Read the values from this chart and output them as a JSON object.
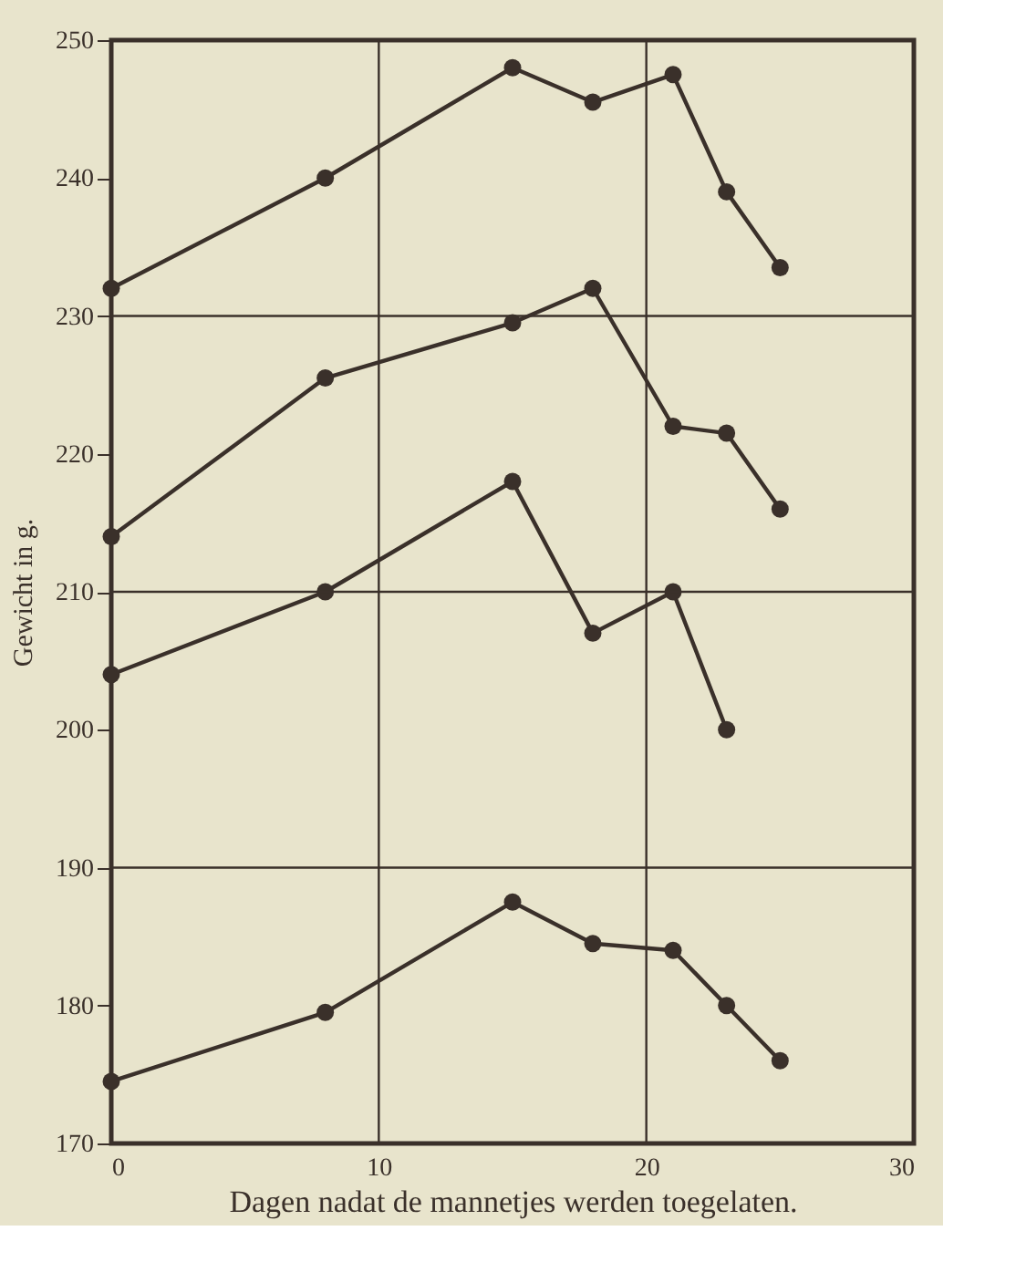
{
  "chart_data": {
    "type": "line",
    "xlabel": "Dagen nadat de mannetjes werden toegelaten.",
    "ylabel": "Gewicht in g.",
    "xlim": [
      0,
      30
    ],
    "xticks": [
      0,
      10,
      20,
      30
    ],
    "ylim": [
      170,
      250
    ],
    "yticks": [
      170,
      180,
      190,
      200,
      210,
      220,
      230,
      240,
      250
    ],
    "marker": "circle",
    "line_style": "solid",
    "legend": false,
    "grid": false,
    "ref_lines": [
      {
        "axis": "x",
        "value": 10,
        "color": "#3a302a"
      },
      {
        "axis": "x",
        "value": 20,
        "color": "#3a302a"
      },
      {
        "axis": "y",
        "value": 190,
        "color": "#3a302a"
      },
      {
        "axis": "y",
        "value": 210,
        "color": "#3a302a"
      },
      {
        "axis": "y",
        "value": 230,
        "color": "#3a302a"
      }
    ],
    "series": [
      {
        "color": "#3a302a",
        "x": [
          0,
          8,
          15,
          18,
          21,
          23,
          25
        ],
        "values": [
          232,
          240,
          248,
          245.5,
          247.5,
          239,
          233.5
        ]
      },
      {
        "color": "#3a302a",
        "x": [
          0,
          8,
          15,
          18,
          21,
          23,
          25
        ],
        "values": [
          214,
          225.5,
          229.5,
          232,
          222,
          221.5,
          216
        ]
      },
      {
        "color": "#3a302a",
        "x": [
          0,
          8,
          15,
          18,
          21,
          23
        ],
        "values": [
          204,
          210,
          218,
          207,
          210,
          200
        ]
      },
      {
        "color": "#3a302a",
        "x": [
          0,
          8,
          15,
          18,
          21,
          23,
          25
        ],
        "values": [
          174.5,
          179.5,
          187.5,
          184.5,
          184,
          180,
          176
        ]
      }
    ]
  }
}
